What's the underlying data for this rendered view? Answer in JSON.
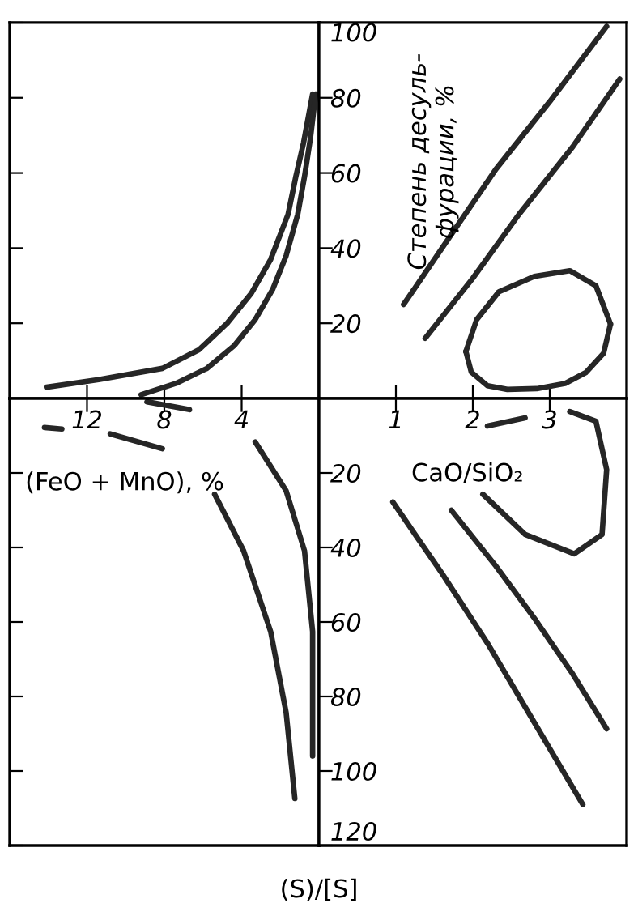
{
  "chart_data": [
    {
      "type": "line",
      "xlim": [
        16,
        0
      ],
      "ylim": [
        0,
        100
      ],
      "xticks": [
        12,
        8,
        4
      ],
      "yticks": [
        20,
        40,
        60,
        80,
        100
      ],
      "tick_labels": false,
      "grid": false,
      "series": [
        {
          "color": "#262626",
          "x": [
            14.1,
            11.4,
            8.1,
            6.2,
            4.75,
            3.5,
            2.5,
            1.6,
            1.2,
            0.8,
            0.33
          ],
          "values": [
            3,
            5,
            8,
            13,
            20,
            28,
            37,
            49,
            59,
            68,
            81
          ]
        },
        {
          "color": "#262626",
          "x": [
            9.2,
            7.4,
            5.8,
            4.4,
            3.3,
            2.4,
            1.7,
            1.1,
            0.75,
            0.45,
            0.17
          ],
          "values": [
            1,
            4,
            8,
            14,
            21,
            29,
            38,
            49,
            59,
            69,
            81
          ]
        }
      ]
    },
    {
      "type": "line",
      "xlim": [
        0,
        4
      ],
      "ylim": [
        0,
        100
      ],
      "xticks": [
        1,
        2,
        3
      ],
      "yticks": [
        20,
        40,
        60,
        80,
        100
      ],
      "tick_labels": "y",
      "grid": false,
      "ylabel": "Степень десуль-\nфурации, %",
      "series": [
        {
          "color": "#262626",
          "x": [
            1.1,
            1.7,
            2.3,
            3.0,
            3.74
          ],
          "values": [
            25,
            43,
            61,
            79,
            99
          ]
        },
        {
          "color": "#262626",
          "x": [
            1.38,
            2.0,
            2.6,
            3.3,
            3.91
          ],
          "values": [
            16,
            32,
            49,
            67,
            85
          ]
        },
        {
          "color": "#262626",
          "x": [
            1.91,
            2.05,
            2.34,
            2.8,
            3.26,
            3.6,
            3.79
          ],
          "values": [
            12.5,
            21,
            28.4,
            32.5,
            34,
            30,
            19.8
          ]
        },
        {
          "color": "#262626",
          "x": [
            1.91,
            1.98,
            2.19,
            2.45,
            2.83,
            3.2,
            3.47,
            3.7,
            3.79
          ],
          "values": [
            12.5,
            7,
            3.4,
            2.4,
            2.6,
            4,
            6.9,
            12,
            19.8
          ]
        }
      ]
    },
    {
      "type": "line",
      "xlim": [
        16,
        0
      ],
      "ylim": [
        120,
        0
      ],
      "xticks": [
        12,
        8,
        4
      ],
      "yticks": [
        20,
        40,
        60,
        80,
        100,
        120
      ],
      "tick_labels": "x",
      "grid": false,
      "xlabel": "(FeO + MnO), %",
      "series": [
        {
          "color": "#262626",
          "x": [
            14.2,
            13.3,
            null,
            10.8,
            8.1,
            null,
            5.4,
            3.9,
            2.5,
            1.7,
            1.25
          ],
          "values": [
            7.8,
            8.2,
            null,
            9.5,
            13.5,
            null,
            25.7,
            40.9,
            62.6,
            84.3,
            107.4
          ]
        },
        {
          "color": "#262626",
          "x": [
            8.9,
            6.7,
            null,
            3.3,
            1.7,
            0.75,
            0.33,
            0.33
          ],
          "values": [
            0.9,
            3,
            null,
            11.7,
            24.8,
            40.9,
            62.6,
            96
          ]
        }
      ]
    },
    {
      "type": "line",
      "xlim": [
        0,
        4
      ],
      "ylim": [
        120,
        0
      ],
      "xticks": [
        1,
        2,
        3
      ],
      "yticks": [
        20,
        40,
        60,
        80,
        100,
        120
      ],
      "grid": false,
      "xlabel": "CaO/SiO₂",
      "ylabel": "(S)/[S]",
      "series": [
        {
          "color": "#262626",
          "x": [
            0.96,
            1.6,
            2.2,
            2.8,
            3.43
          ],
          "values": [
            27.8,
            47,
            66,
            87,
            109
          ]
        },
        {
          "color": "#262626",
          "x": [
            1.72,
            2.3,
            2.8,
            3.3,
            3.74
          ],
          "values": [
            30,
            45,
            59,
            74,
            88.7
          ]
        },
        {
          "color": "#262626",
          "x": [
            2.13,
            2.68,
            3.32,
            3.68,
            3.74,
            3.6,
            3.26,
            null,
            2.68,
            2.19
          ],
          "values": [
            25.7,
            36.5,
            41.7,
            36.5,
            19.1,
            6.1,
            3.5,
            null,
            5.2,
            7.4
          ]
        }
      ]
    }
  ]
}
